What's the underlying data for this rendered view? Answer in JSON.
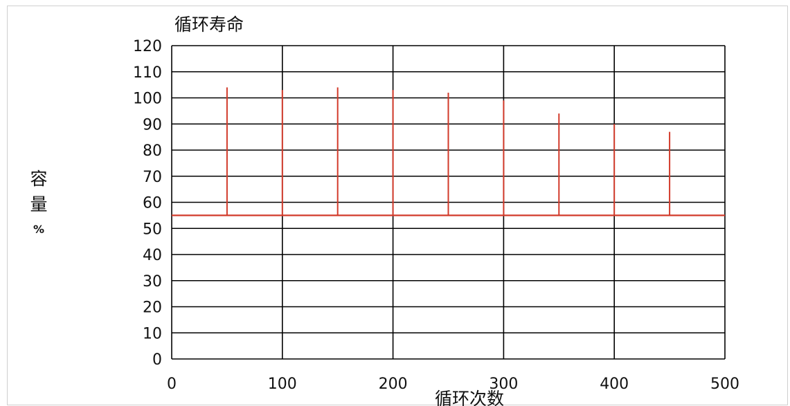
{
  "chart_data": {
    "type": "line",
    "title": "循环寿命",
    "xlabel": "循环次数",
    "ylabel": "容量",
    "ylabel_unit": "%",
    "xlim": [
      0,
      500
    ],
    "ylim": [
      0,
      120
    ],
    "x_ticks": [
      0,
      100,
      200,
      300,
      400,
      500
    ],
    "y_ticks": [
      0,
      10,
      20,
      30,
      40,
      50,
      60,
      70,
      80,
      90,
      100,
      110,
      120
    ],
    "grid": true,
    "baseline": 55,
    "series": [
      {
        "points": [
          {
            "x": 50,
            "y": 104
          },
          {
            "x": 100,
            "y": 103
          },
          {
            "x": 150,
            "y": 104
          },
          {
            "x": 200,
            "y": 103
          },
          {
            "x": 250,
            "y": 102
          },
          {
            "x": 300,
            "y": 99
          },
          {
            "x": 350,
            "y": 94
          },
          {
            "x": 400,
            "y": 90
          },
          {
            "x": 450,
            "y": 87
          }
        ]
      }
    ],
    "colors": {
      "series": "#d23a2a",
      "grid": "#000000"
    }
  }
}
